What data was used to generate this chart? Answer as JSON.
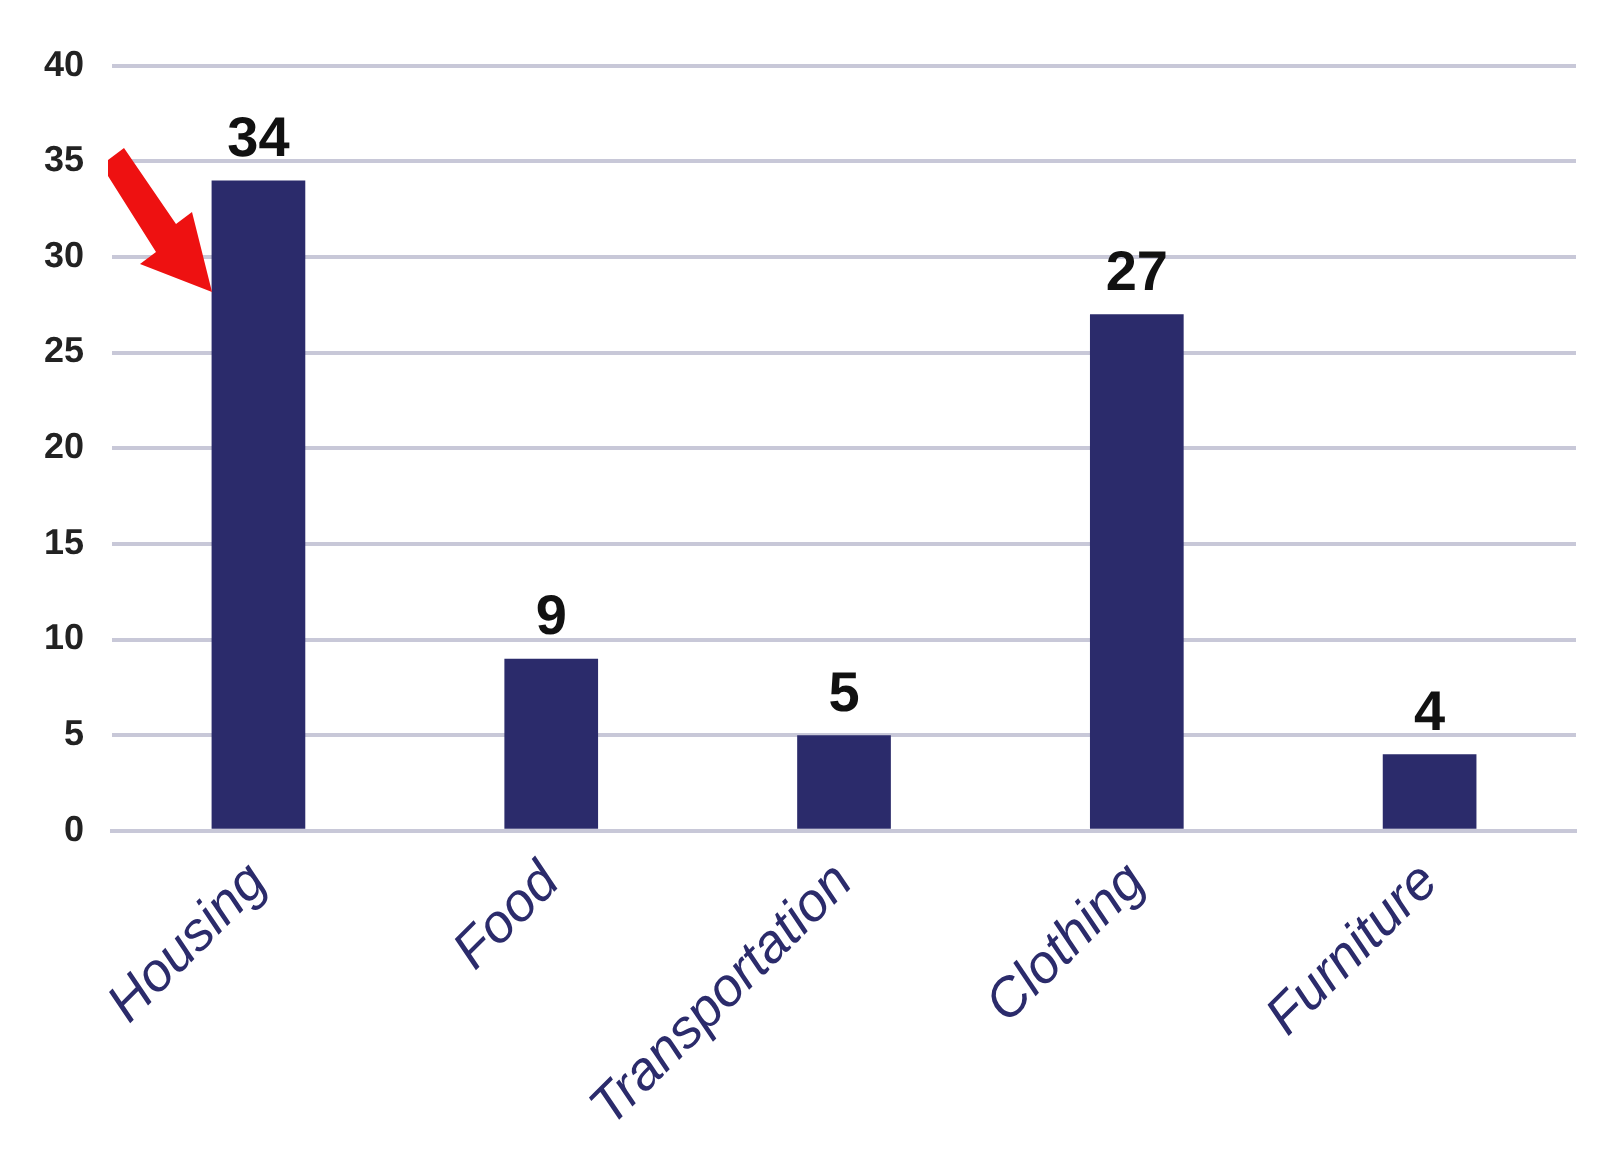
{
  "chart_data": {
    "type": "bar",
    "categories": [
      "Housing",
      "Food",
      "Transportation",
      "Clothing",
      "Furniture"
    ],
    "values": [
      34,
      9,
      5,
      27,
      4
    ],
    "color": "#2b2b6b",
    "ylim": [
      0,
      40
    ],
    "yticks": [
      0,
      5,
      10,
      15,
      20,
      25,
      30,
      35,
      40
    ],
    "grid": "y",
    "data_labels": true,
    "legend": false
  }
}
